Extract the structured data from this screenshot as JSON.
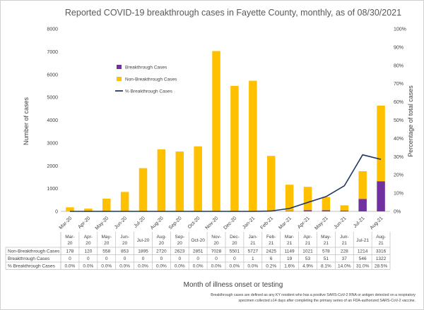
{
  "chart_data": {
    "type": "bar",
    "title": "Reported COVID-19 breakthrough cases in Fayette County, monthly, as of 08/30/2021",
    "xlabel": "Month of illness onset or testing",
    "ylabel": "Number of cases",
    "y2label": "Percentage of total cases",
    "ylim": [
      0,
      8000
    ],
    "y2lim": [
      0,
      100
    ],
    "y_ticks": [
      "0",
      "1000",
      "2000",
      "3000",
      "4000",
      "5000",
      "6000",
      "7000",
      "8000"
    ],
    "y2_ticks": [
      "0%",
      "10%",
      "20%",
      "30%",
      "40%",
      "50%",
      "60%",
      "70%",
      "80%",
      "90%",
      "100%"
    ],
    "categories": [
      "Mar-20",
      "Apr-20",
      "May-20",
      "Jun-20",
      "Jul-20",
      "Aug-20",
      "Sep-20",
      "Oct-20",
      "Nov-20",
      "Dec-20",
      "Jan-21",
      "Feb-21",
      "Mar-21",
      "Apr-21",
      "May-21",
      "Jun-21",
      "Jul-21",
      "Aug-21"
    ],
    "series": [
      {
        "name": "Breakthrough Cases",
        "kind": "bar-stacked",
        "color": "#7030a0",
        "values": [
          0,
          0,
          0,
          0,
          0,
          0,
          0,
          0,
          0,
          0,
          1,
          6,
          19,
          53,
          51,
          37,
          546,
          1322
        ],
        "table_values": [
          "0",
          "0",
          "0",
          "0",
          "0",
          "0",
          "0",
          "0",
          "0",
          "0",
          "1",
          "6",
          "19",
          "53",
          "51",
          "37",
          "546",
          "1322"
        ]
      },
      {
        "name": "Non-Breakthrough Cases",
        "kind": "bar-stacked",
        "color": "#ffc000",
        "values": [
          178,
          120,
          558,
          853,
          1895,
          2720,
          2623,
          2851,
          7028,
          5501,
          5727,
          2425,
          1149,
          1021,
          578,
          228,
          1214,
          3316
        ],
        "table_values": [
          "178",
          "120",
          "558",
          "853",
          "1895",
          "2720",
          "2623",
          "2851",
          "7028",
          "5501",
          "5727",
          "2425",
          "1149",
          "1021",
          "578",
          "228",
          "1214",
          "3316"
        ]
      },
      {
        "name": "% Breakthrough Cases",
        "kind": "line-secondary-axis",
        "color": "#1f3864",
        "values": [
          0,
          0,
          0,
          0,
          0,
          0,
          0,
          0,
          0,
          0,
          0,
          0.2,
          1.6,
          4.9,
          8.1,
          14.0,
          31.0,
          28.5
        ],
        "table_values": [
          "0.0%",
          "0.0%",
          "0.0%",
          "0.0%",
          "0.0%",
          "0.0%",
          "0.0%",
          "0.0%",
          "0.0%",
          "0.0%",
          "0.0%",
          "0.2%",
          "1.6%",
          "4.9%",
          "8.1%",
          "14.0%",
          "31.0%",
          "28.5%"
        ]
      }
    ],
    "table": {
      "column_labels": [
        [
          "Mar-",
          "20"
        ],
        [
          "Apr-",
          "20"
        ],
        [
          "May-",
          "20"
        ],
        [
          "Jun-",
          "20"
        ],
        [
          "Jul-20"
        ],
        [
          "Aug-",
          "20"
        ],
        [
          "Sep-",
          "20"
        ],
        [
          "Oct-20"
        ],
        [
          "Nov-",
          "20"
        ],
        [
          "Dec-",
          "20"
        ],
        [
          "Jan-",
          "21"
        ],
        [
          "Feb-",
          "21"
        ],
        [
          "Mar-",
          "21"
        ],
        [
          "Apr-",
          "21"
        ],
        [
          "May-",
          "21"
        ],
        [
          "Jun-",
          "21"
        ],
        [
          "Jul-21"
        ],
        [
          "Aug-",
          "21"
        ]
      ],
      "row_labels": [
        "Non-Breakthrough Cases",
        "Breakthrough Cases",
        "% Breakthrough Cases"
      ]
    },
    "legend": {
      "placement": "top-left",
      "entries": [
        "Breakthrough Cases",
        "Non-Breakthrough Cases",
        "% Breakthrough Cases"
      ]
    },
    "footnote": [
      "Breakthrough cases are defined as any KY resident who has a positive SARS-CoV-2 RNA or antigen detected on a respiratory",
      "specimen collected ≥14 days after completing the primary series of an FDA-authorized SARS-CoV-2 vaccine."
    ]
  }
}
